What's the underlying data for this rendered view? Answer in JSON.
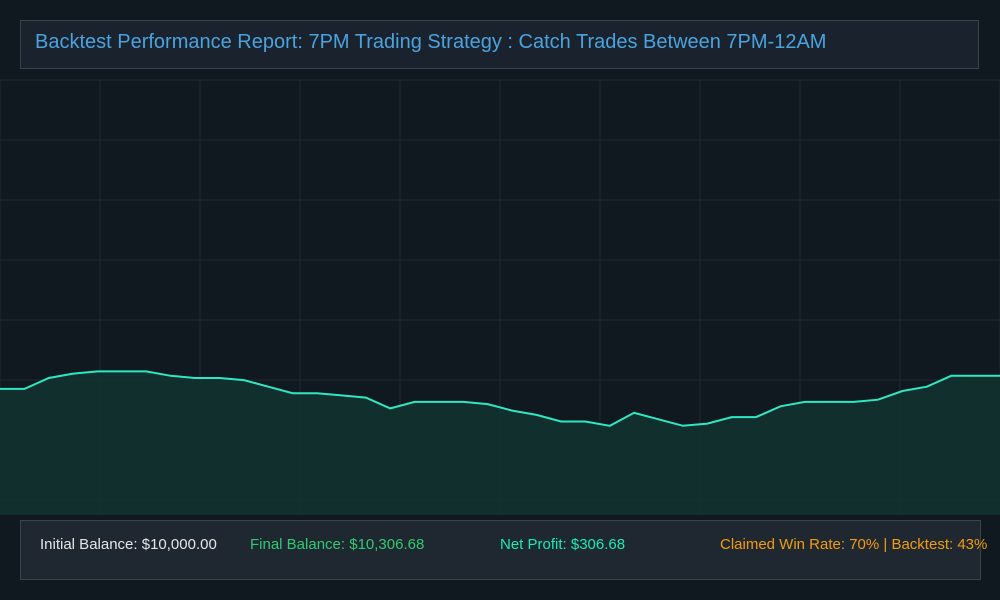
{
  "header": {
    "title": "Backtest Performance Report: 7PM Trading Strategy : Catch Trades Between 7PM-12AM"
  },
  "stats": {
    "initial_balance": "Initial Balance: $10,000.00",
    "final_balance": "Final Balance: $10,306.68",
    "net_profit": "Net Profit: $306.68",
    "win_rate": "Claimed Win Rate: 70% | Backtest: 43%"
  },
  "colors": {
    "background": "#101820",
    "grid": "#1e2a2e",
    "line": "#2de8c3",
    "fill": "#123430",
    "title": "#4aa3df",
    "final_balance": "#2ecc71",
    "net_profit": "#1de9b6",
    "win_rate": "#f39c12"
  },
  "chart_data": {
    "type": "area",
    "title": "",
    "xlabel": "",
    "ylabel": "",
    "grid": true,
    "ylim": [
      0,
      100
    ],
    "series": [
      {
        "values": [
          29.0,
          29.0,
          31.5,
          32.5,
          33.0,
          33.0,
          33.0,
          32.0,
          31.5,
          31.5,
          31.0,
          29.5,
          28.0,
          28.0,
          27.5,
          27.0,
          24.5,
          26.0,
          26.0,
          26.0,
          25.5,
          24.0,
          23.0,
          21.5,
          21.5,
          20.5,
          23.5,
          22.0,
          20.5,
          21.0,
          22.5,
          22.5,
          25.0,
          26.0,
          26.0,
          26.0,
          26.5,
          28.5,
          29.5,
          32.0,
          32.0,
          32.0
        ]
      }
    ]
  }
}
